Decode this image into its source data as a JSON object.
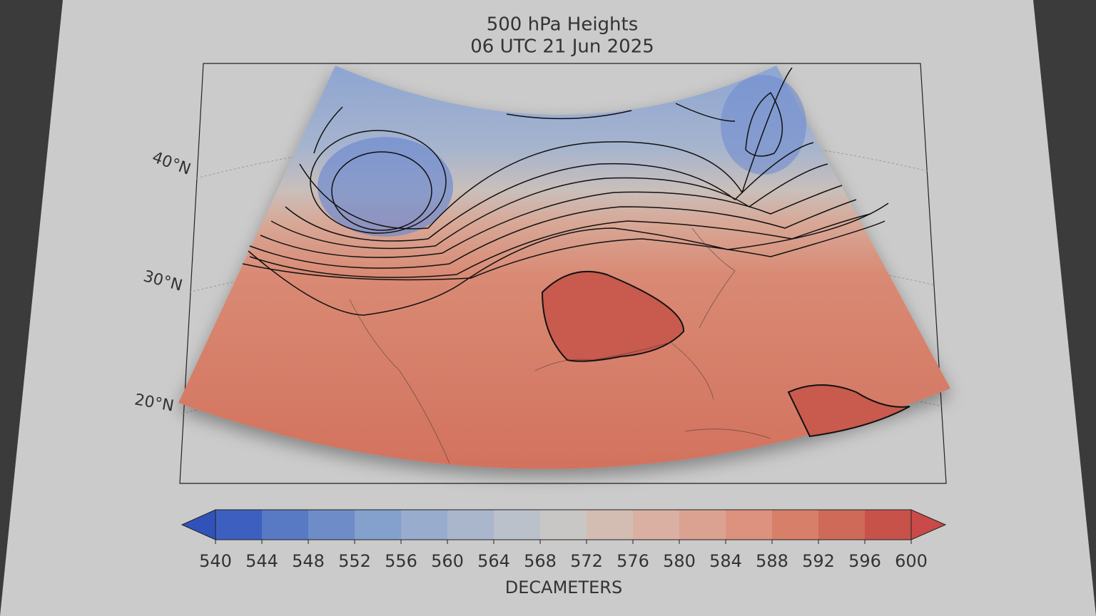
{
  "title": [
    "500 hPa Heights",
    "06 UTC  21 Jun 2025"
  ],
  "map": {
    "lat_labels": [
      "40°N",
      "30°N",
      "20°N"
    ]
  },
  "colorbar": {
    "ticks": [
      540,
      544,
      548,
      552,
      556,
      560,
      564,
      568,
      572,
      576,
      580,
      584,
      588,
      592,
      596,
      600
    ],
    "colors": [
      "#3d60c0",
      "#587ac4",
      "#6e8cc8",
      "#84a0cc",
      "#98acce",
      "#aab6cc",
      "#bbc1cb",
      "#c9c7c6",
      "#d3bcb2",
      "#d9b0a1",
      "#dba292",
      "#dc927e",
      "#d87f6a",
      "#cf6a58",
      "#c75249"
    ],
    "extend_colors": [
      "#3152b8",
      "#c94a48"
    ],
    "label": "DECAMETERS"
  }
}
